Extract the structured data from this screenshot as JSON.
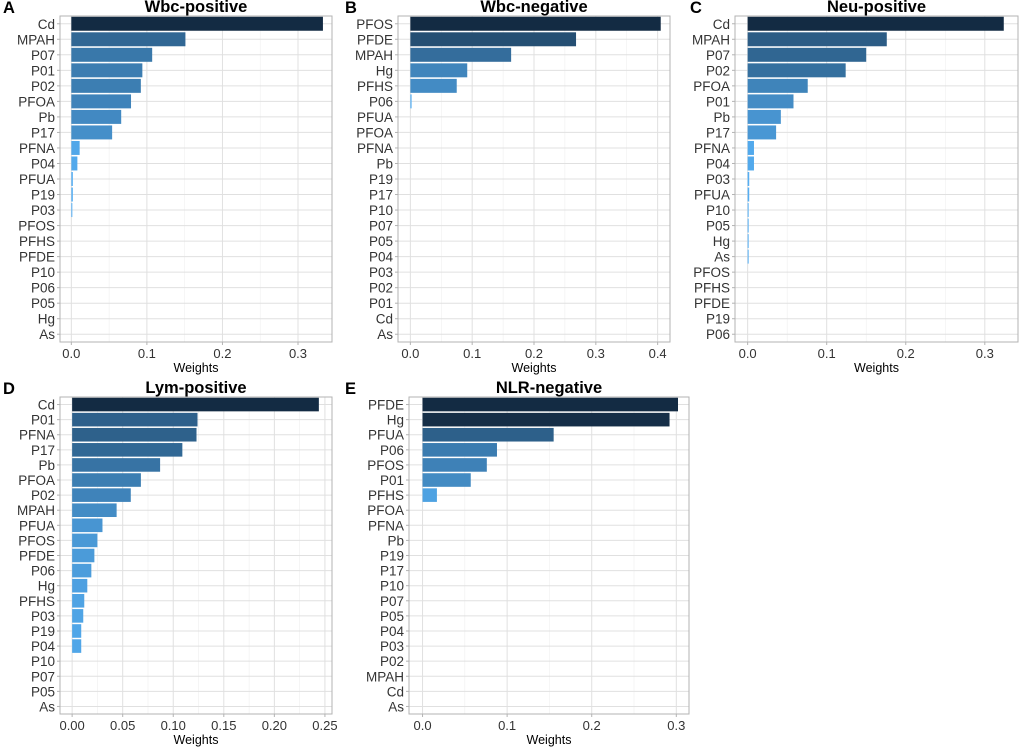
{
  "figure": {
    "chart_data": [
      {
        "type": "bar",
        "orientation": "horizontal",
        "panel_letter": "A",
        "title": "Wbc-positive",
        "xlabel": "Weights",
        "ylabel": "",
        "xlim": [
          -0.015,
          0.345
        ],
        "xticks": [
          0,
          0.1,
          0.2,
          0.3
        ],
        "xtick_labels": [
          "0.0",
          "0.1",
          "0.2",
          "0.3"
        ],
        "grid": true,
        "categories": [
          "Cd",
          "MPAH",
          "P07",
          "P01",
          "P02",
          "PFOA",
          "Pb",
          "P17",
          "PFNA",
          "P04",
          "PFUA",
          "P19",
          "P03",
          "PFOS",
          "PFHS",
          "PFDE",
          "P10",
          "P06",
          "P05",
          "Hg",
          "As"
        ],
        "values": [
          0.333,
          0.151,
          0.107,
          0.094,
          0.092,
          0.079,
          0.066,
          0.054,
          0.011,
          0.008,
          0.002,
          0.002,
          0.001,
          0,
          0,
          0,
          0,
          0,
          0,
          0,
          0
        ]
      },
      {
        "type": "bar",
        "orientation": "horizontal",
        "panel_letter": "B",
        "title": "Wbc-negative",
        "xlabel": "Weights",
        "ylabel": "",
        "xlim": [
          -0.02,
          0.42
        ],
        "xticks": [
          0,
          0.1,
          0.2,
          0.3,
          0.4
        ],
        "xtick_labels": [
          "0.0",
          "0.1",
          "0.2",
          "0.3",
          "0.4"
        ],
        "grid": true,
        "categories": [
          "PFOS",
          "PFDE",
          "MPAH",
          "Hg",
          "PFHS",
          "P06",
          "PFUA",
          "PFOA",
          "PFNA",
          "Pb",
          "P19",
          "P17",
          "P10",
          "P07",
          "P05",
          "P04",
          "P03",
          "P02",
          "P01",
          "Cd",
          "As"
        ],
        "values": [
          0.405,
          0.268,
          0.163,
          0.092,
          0.075,
          0.002,
          0,
          0,
          0,
          0,
          0,
          0,
          0,
          0,
          0,
          0,
          0,
          0,
          0,
          0,
          0
        ]
      },
      {
        "type": "bar",
        "orientation": "horizontal",
        "panel_letter": "C",
        "title": "Neu-positive",
        "xlabel": "Weights",
        "ylabel": "",
        "xlim": [
          -0.016,
          0.342
        ],
        "xticks": [
          0,
          0.1,
          0.2,
          0.3
        ],
        "xtick_labels": [
          "0.0",
          "0.1",
          "0.2",
          "0.3"
        ],
        "grid": true,
        "categories": [
          "Cd",
          "MPAH",
          "P07",
          "P02",
          "PFOA",
          "P01",
          "Pb",
          "P17",
          "PFNA",
          "P04",
          "P03",
          "PFUA",
          "P10",
          "P05",
          "Hg",
          "As",
          "PFOS",
          "PFHS",
          "PFDE",
          "P19",
          "P06"
        ],
        "values": [
          0.324,
          0.176,
          0.15,
          0.124,
          0.076,
          0.058,
          0.042,
          0.036,
          0.008,
          0.008,
          0.002,
          0.002,
          0.001,
          0.001,
          0.001,
          0.001,
          0,
          0,
          0,
          0,
          0
        ]
      },
      {
        "type": "bar",
        "orientation": "horizontal",
        "panel_letter": "D",
        "title": "Lym-positive",
        "xlabel": "Weights",
        "ylabel": "",
        "xlim": [
          -0.012,
          0.257
        ],
        "xticks": [
          0,
          0.05,
          0.1,
          0.15,
          0.2,
          0.25
        ],
        "xtick_labels": [
          "0.00",
          "0.05",
          "0.10",
          "0.15",
          "0.20",
          "0.25"
        ],
        "grid": true,
        "categories": [
          "Cd",
          "P01",
          "PFNA",
          "P17",
          "Pb",
          "PFOA",
          "P02",
          "MPAH",
          "PFUA",
          "PFOS",
          "PFDE",
          "P06",
          "Hg",
          "PFHS",
          "P03",
          "P19",
          "P04",
          "P10",
          "P07",
          "P05",
          "As"
        ],
        "values": [
          0.244,
          0.124,
          0.123,
          0.109,
          0.087,
          0.068,
          0.058,
          0.044,
          0.03,
          0.025,
          0.022,
          0.019,
          0.015,
          0.012,
          0.011,
          0.009,
          0.009,
          0,
          0,
          0,
          0
        ]
      },
      {
        "type": "bar",
        "orientation": "horizontal",
        "panel_letter": "E",
        "title": "NLR-negative",
        "xlabel": "Weights",
        "ylabel": "",
        "xlim": [
          -0.016,
          0.315
        ],
        "xticks": [
          0,
          0.1,
          0.2,
          0.3
        ],
        "xtick_labels": [
          "0.0",
          "0.1",
          "0.2",
          "0.3"
        ],
        "grid": true,
        "categories": [
          "PFDE",
          "Hg",
          "PFUA",
          "P06",
          "PFOS",
          "P01",
          "PFHS",
          "PFOA",
          "PFNA",
          "Pb",
          "P19",
          "P17",
          "P10",
          "P07",
          "P05",
          "P04",
          "P03",
          "P02",
          "MPAH",
          "Cd",
          "As"
        ],
        "values": [
          0.302,
          0.292,
          0.155,
          0.088,
          0.076,
          0.057,
          0.017,
          0,
          0,
          0,
          0,
          0,
          0,
          0,
          0,
          0,
          0,
          0,
          0,
          0,
          0
        ]
      }
    ],
    "colors": {
      "bar_dark": "#132b43",
      "bar_light": "#56b1f7",
      "grid": "#e0e0e0",
      "frame": "#b3b3b3",
      "text": "#333333"
    }
  }
}
